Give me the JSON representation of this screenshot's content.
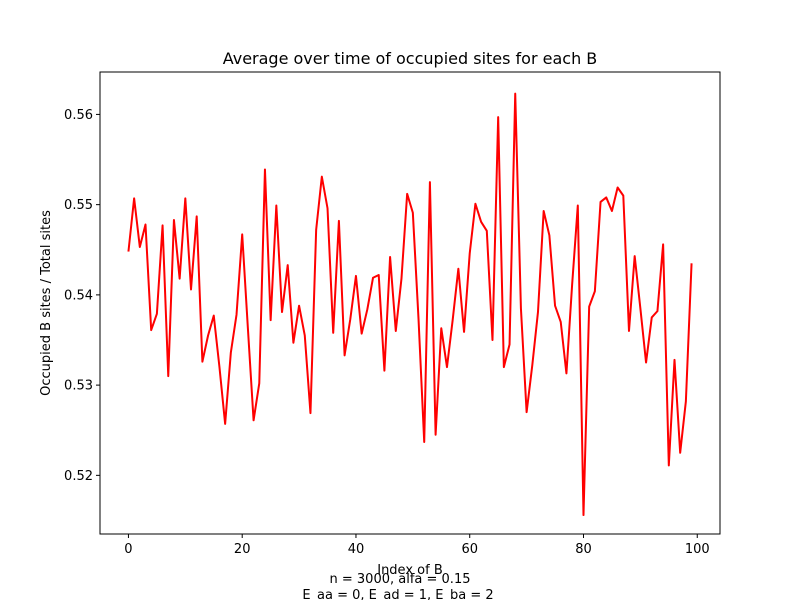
{
  "chart_data": {
    "type": "line",
    "title": "Average over time of occupied sites for each B",
    "xlabel": "Index of B",
    "ylabel": "Occupied B sites / Total sites",
    "xlim": [
      -5,
      104
    ],
    "ylim": [
      0.5135,
      0.5647
    ],
    "xticks": [
      0,
      20,
      40,
      60,
      80,
      100
    ],
    "xtick_labels": [
      "0",
      "20",
      "40",
      "60",
      "80",
      "100"
    ],
    "yticks": [
      0.52,
      0.53,
      0.54,
      0.55,
      0.56
    ],
    "ytick_labels": [
      "0.52",
      "0.53",
      "0.54",
      "0.55",
      "0.56"
    ],
    "grid": false,
    "series": [
      {
        "color": "#ff0000",
        "x": [
          0,
          1,
          2,
          3,
          4,
          5,
          6,
          7,
          8,
          9,
          10,
          11,
          12,
          13,
          14,
          15,
          16,
          17,
          18,
          19,
          20,
          21,
          22,
          23,
          24,
          25,
          26,
          27,
          28,
          29,
          30,
          31,
          32,
          33,
          34,
          35,
          36,
          37,
          38,
          39,
          40,
          41,
          42,
          43,
          44,
          45,
          46,
          47,
          48,
          49,
          50,
          51,
          52,
          53,
          54,
          55,
          56,
          57,
          58,
          59,
          60,
          61,
          62,
          63,
          64,
          65,
          66,
          67,
          68,
          69,
          70,
          71,
          72,
          73,
          74,
          75,
          76,
          77,
          78,
          79,
          80,
          81,
          82,
          83,
          84,
          85,
          86,
          87,
          88,
          89,
          90,
          91,
          92,
          93,
          94,
          95,
          96,
          97,
          98,
          99
        ],
        "y": [
          0.5448,
          0.5507,
          0.5453,
          0.5478,
          0.5361,
          0.5379,
          0.5477,
          0.531,
          0.5483,
          0.5418,
          0.5507,
          0.5406,
          0.5487,
          0.5326,
          0.5355,
          0.5377,
          0.532,
          0.5257,
          0.5336,
          0.5378,
          0.5467,
          0.5363,
          0.5261,
          0.5302,
          0.5539,
          0.5372,
          0.5499,
          0.5381,
          0.5433,
          0.5347,
          0.5388,
          0.5355,
          0.5269,
          0.5472,
          0.5531,
          0.5496,
          0.5358,
          0.5482,
          0.5333,
          0.5373,
          0.5421,
          0.5357,
          0.5384,
          0.5419,
          0.5422,
          0.5316,
          0.5442,
          0.536,
          0.5418,
          0.5512,
          0.5491,
          0.5373,
          0.5237,
          0.5525,
          0.5245,
          0.5363,
          0.532,
          0.5372,
          0.5429,
          0.5359,
          0.5446,
          0.5501,
          0.5481,
          0.5471,
          0.535,
          0.5597,
          0.532,
          0.5345,
          0.5623,
          0.5385,
          0.527,
          0.5322,
          0.5381,
          0.5493,
          0.5466,
          0.5388,
          0.537,
          0.5313,
          0.5411,
          0.5499,
          0.5156,
          0.5387,
          0.5404,
          0.5503,
          0.5508,
          0.5493,
          0.5519,
          0.551,
          0.536,
          0.5443,
          0.5385,
          0.5325,
          0.5375,
          0.5382,
          0.5456,
          0.5211,
          0.5328,
          0.5225,
          0.5282,
          0.5435
        ]
      }
    ]
  },
  "caption": {
    "line1": "n = 3000, alfa = 0.15",
    "line2": "E_aa = 0, E_ad = 1, E_ba = 2"
  }
}
